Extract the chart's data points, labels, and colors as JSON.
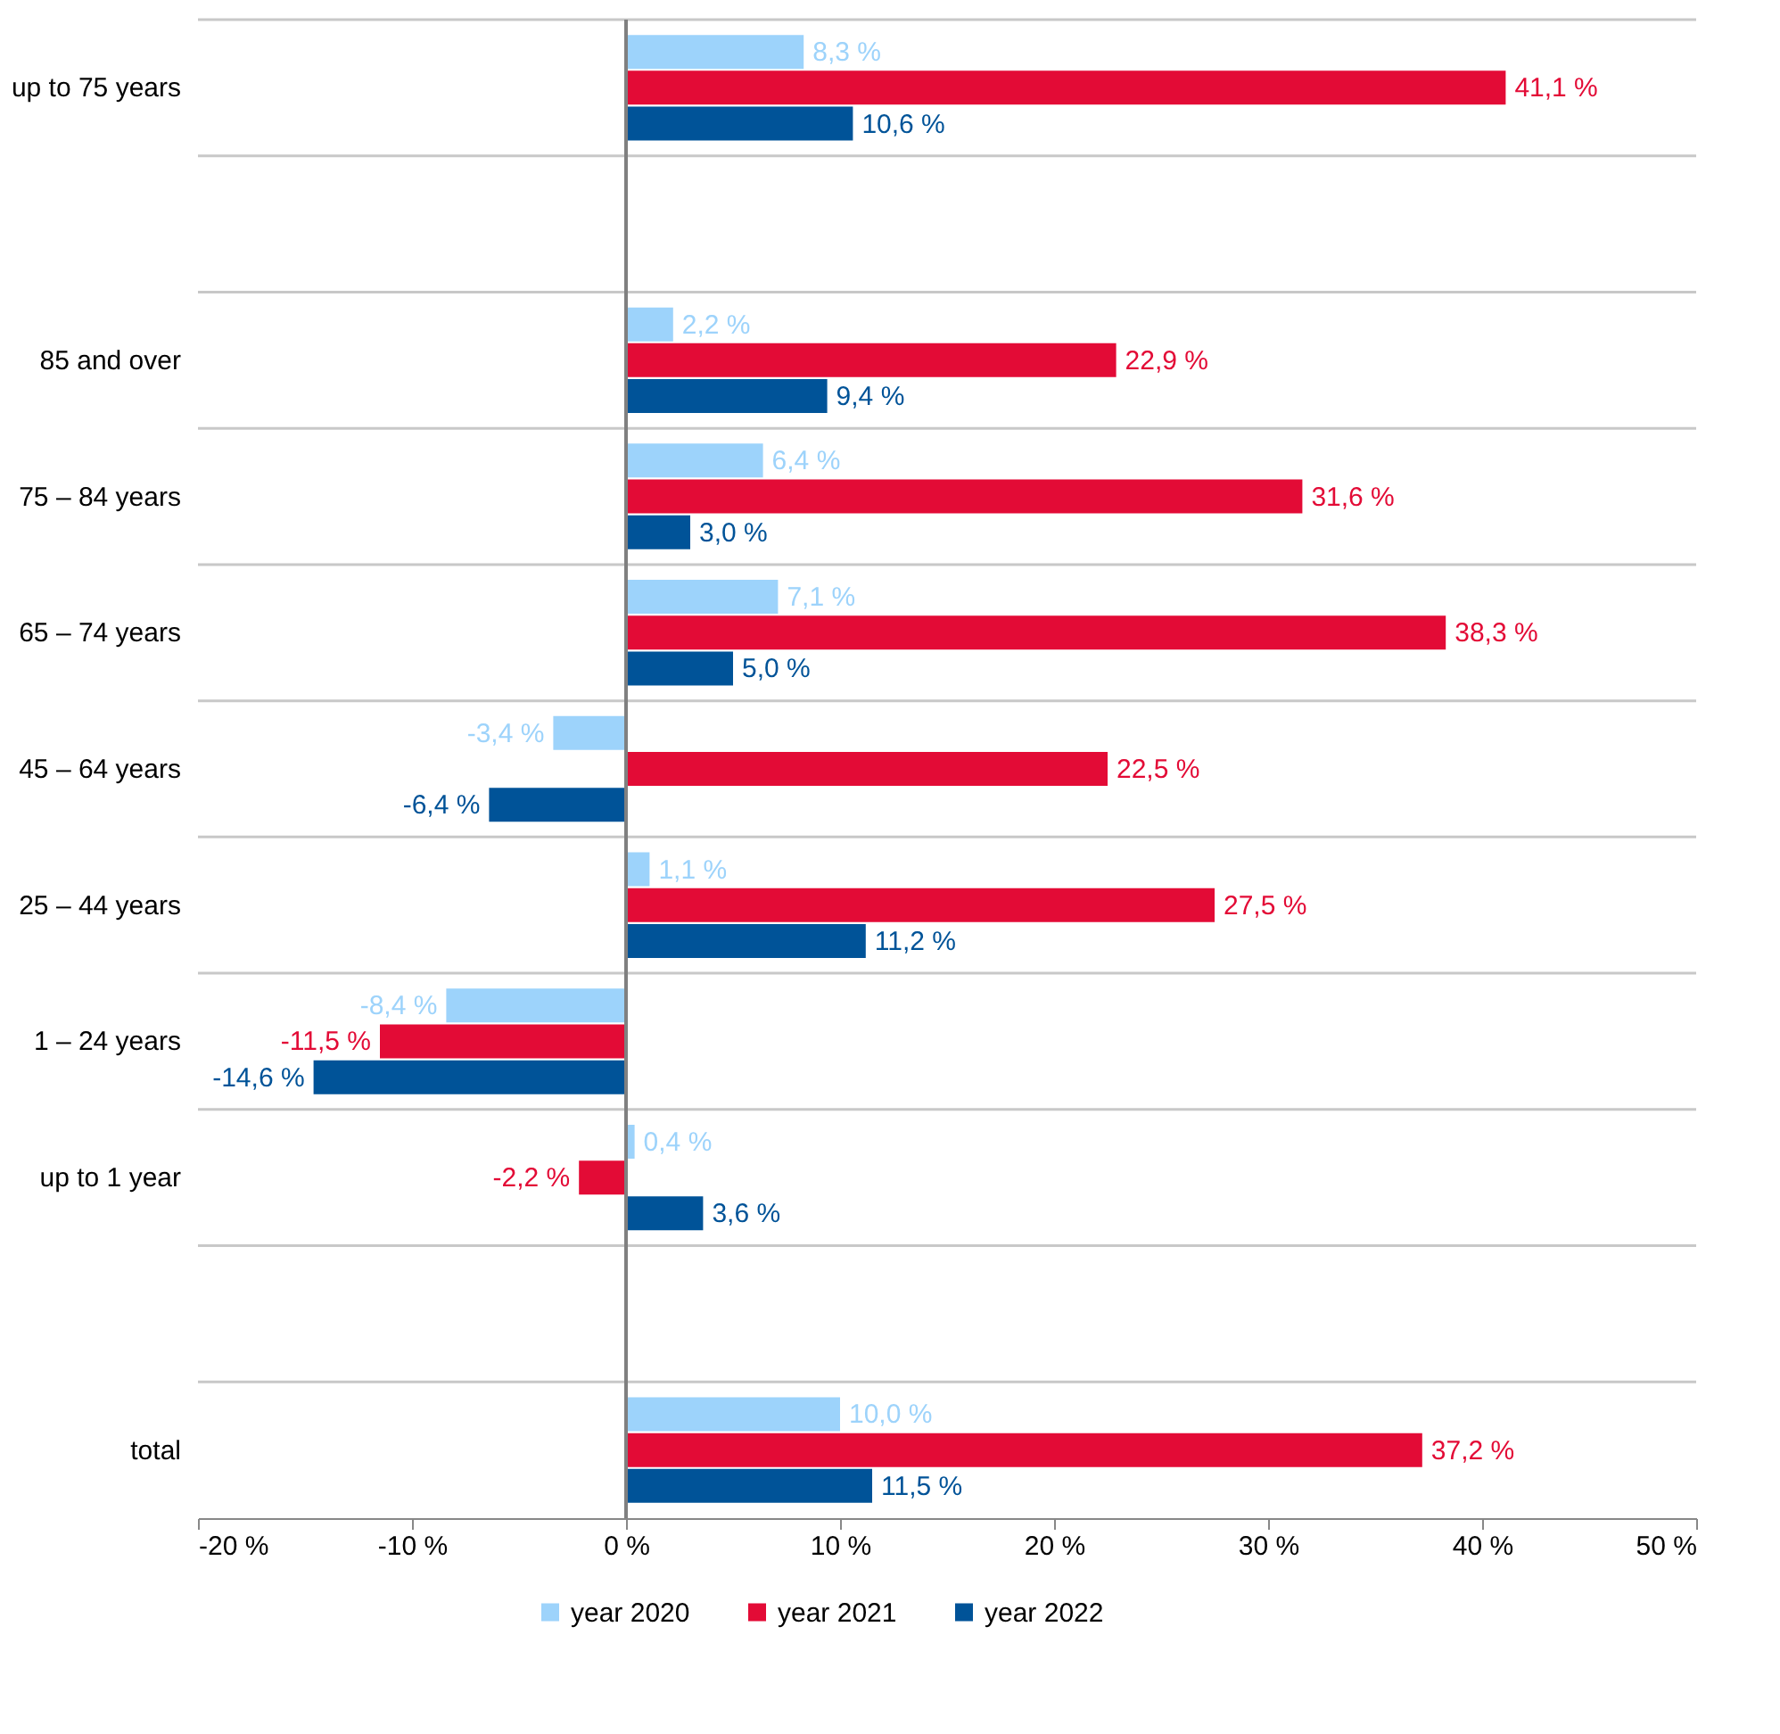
{
  "chart_data": {
    "type": "bar",
    "orientation": "horizontal",
    "categories": [
      "up to 75 years",
      null,
      "85 and over",
      "75 – 84 years",
      "65 – 74 years",
      "45 – 64 years",
      "25 – 44 years",
      "1 – 24 years",
      "up to 1 year",
      null,
      "total"
    ],
    "series": [
      {
        "name": "year 2020",
        "color": "#9dd3fb",
        "values": [
          8.3,
          null,
          2.2,
          6.4,
          7.1,
          -3.4,
          1.1,
          -8.4,
          0.4,
          null,
          10.0
        ],
        "value_labels": [
          "8,3 %",
          null,
          "2,2 %",
          "6,4 %",
          "7,1 %",
          "-3,4 %",
          "1,1 %",
          "-8,4 %",
          "0,4 %",
          null,
          "10,0 %"
        ]
      },
      {
        "name": "year 2021",
        "color": "#e30b36",
        "values": [
          41.1,
          null,
          22.9,
          31.6,
          38.3,
          22.5,
          27.5,
          -11.5,
          -2.2,
          null,
          37.2
        ],
        "value_labels": [
          "41,1 %",
          null,
          "22,9 %",
          "31,6 %",
          "38,3 %",
          "22,5 %",
          "27,5 %",
          "-11,5 %",
          "-2,2 %",
          null,
          "37,2 %"
        ]
      },
      {
        "name": "year 2022",
        "color": "#005398",
        "values": [
          10.6,
          null,
          9.4,
          3.0,
          5.0,
          -6.4,
          11.2,
          -14.6,
          3.6,
          null,
          11.5
        ],
        "value_labels": [
          "10,6 %",
          null,
          "9,4 %",
          "3,0 %",
          "5,0 %",
          "-6,4 %",
          "11,2 %",
          "-14,6 %",
          "3,6 %",
          null,
          "11,5 %"
        ]
      }
    ],
    "xlim": [
      -20,
      50
    ],
    "xticks": [
      {
        "value": -20,
        "label": "-20 %"
      },
      {
        "value": -10,
        "label": "-10 %"
      },
      {
        "value": 0,
        "label": "0 %"
      },
      {
        "value": 10,
        "label": "10 %"
      },
      {
        "value": 20,
        "label": "20 %"
      },
      {
        "value": 30,
        "label": "30 %"
      },
      {
        "value": 40,
        "label": "40 %"
      },
      {
        "value": 50,
        "label": "50 %"
      }
    ],
    "ref_lines": [
      {
        "axis": "x",
        "value": 0,
        "color": "#808080"
      }
    ],
    "grid": "y",
    "legend": "bottom"
  }
}
